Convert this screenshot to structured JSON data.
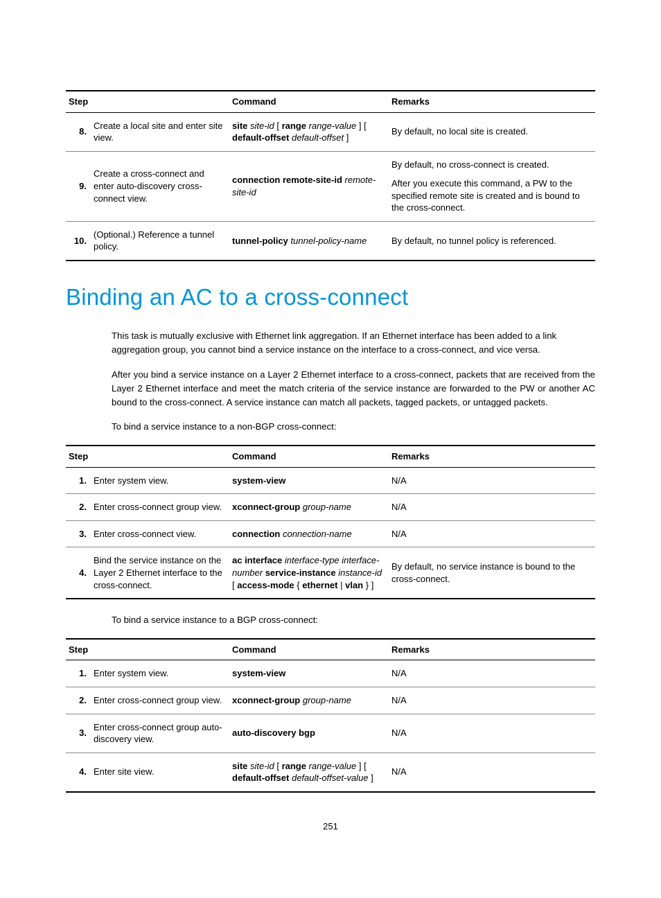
{
  "colors": {
    "heading": "#0096d6",
    "accent_red": "#c8102e",
    "text": "#000000",
    "border_dark": "#000000",
    "border_light": "#888888",
    "background": "#ffffff"
  },
  "table1": {
    "headers": {
      "step": "Step",
      "command": "Command",
      "remarks": "Remarks"
    },
    "rows": [
      {
        "num": "8.",
        "desc": "Create a local site and enter site view.",
        "cmd_parts": [
          "<b>site</b> <i>site-id</i> [ <b>range</b> <i>range-value</i> ] [ <b>default-offset</b> <i>default-offset</i> ]"
        ],
        "rem_parts": [
          "By default, no local site is created."
        ]
      },
      {
        "num": "9.",
        "desc": "Create a cross-connect and enter auto-discovery cross-connect view.",
        "cmd_parts": [
          "<b>connection remote-site-id</b> <i>remote-site-id</i>"
        ],
        "rem_parts": [
          "By default, no cross-connect is created.",
          "After you execute this command, a PW to the specified remote site is created and is bound to the cross-connect."
        ]
      },
      {
        "num": "10.",
        "desc": "(Optional.) Reference a tunnel policy.",
        "cmd_parts": [
          "<b>tunnel-policy</b> <i>tunnel-policy-name</i>"
        ],
        "rem_parts": [
          "By default, no tunnel policy is referenced."
        ]
      }
    ]
  },
  "heading": "Binding an AC to a cross-connect",
  "para1": "This task is mutually exclusive with Ethernet link aggregation. If an Ethernet interface has been added to a link aggregation group, you cannot bind a service instance on the interface to a cross-connect, and vice versa.",
  "para2": "After you bind a service instance on a Layer 2 Ethernet interface to a cross-connect, packets that are received from the Layer 2 Ethernet interface and meet the match criteria of the service instance are forwarded to the PW or another AC bound to the cross-connect. A service instance can match all packets, tagged packets, or untagged packets.",
  "para3": "To bind a service instance to a non-BGP cross-connect:",
  "table2": {
    "headers": {
      "step": "Step",
      "command": "Command",
      "remarks": "Remarks"
    },
    "rows": [
      {
        "num": "1.",
        "red": true,
        "desc": "Enter system view.",
        "cmd_parts": [
          "<b>system-view</b>"
        ],
        "rem_parts": [
          "N/A"
        ]
      },
      {
        "num": "2.",
        "red": true,
        "desc": "Enter cross-connect group view.",
        "cmd_parts": [
          "<b>xconnect-group</b> <i>group-name</i>"
        ],
        "rem_parts": [
          "N/A"
        ]
      },
      {
        "num": "3.",
        "red": true,
        "desc": "Enter cross-connect view.",
        "cmd_parts": [
          "<b>connection</b> <i>connection-name</i>"
        ],
        "rem_parts": [
          "N/A"
        ]
      },
      {
        "num": "4.",
        "red": false,
        "desc": "Bind the service instance on the Layer 2 Ethernet interface to the cross-connect.",
        "cmd_parts": [
          "<b>ac interface</b> <i>interface-type interface-number</i> <b>service-instance</b> <i>instance-id</i> [ <b>access-mode</b> { <b>ethernet</b> | <b>vlan</b> } ]"
        ],
        "rem_parts": [
          "By default, no service instance is bound to the cross-connect."
        ]
      }
    ]
  },
  "para4": "To bind a service instance to a BGP cross-connect:",
  "table3": {
    "headers": {
      "step": "Step",
      "command": "Command",
      "remarks": "Remarks"
    },
    "rows": [
      {
        "num": "1.",
        "red": true,
        "desc": "Enter system view.",
        "cmd_parts": [
          "<b>system-view</b>"
        ],
        "rem_parts": [
          "N/A"
        ]
      },
      {
        "num": "2.",
        "red": true,
        "desc": "Enter cross-connect group view.",
        "cmd_parts": [
          "<b>xconnect-group</b> <i>group-name</i>"
        ],
        "rem_parts": [
          "N/A"
        ]
      },
      {
        "num": "3.",
        "red": true,
        "desc": "Enter cross-connect group auto-discovery view.",
        "cmd_parts": [
          "<b>auto-discovery bgp</b>"
        ],
        "rem_parts": [
          "N/A"
        ]
      },
      {
        "num": "4.",
        "red": false,
        "desc": "Enter site view.",
        "cmd_parts": [
          "<b>site</b> <i>site-id</i> [ <b>range</b> <i>range-value</i> ] [ <b>default-offset</b> <i>default-offset-value</i> ]"
        ],
        "rem_parts": [
          "N/A"
        ]
      }
    ]
  },
  "page_number": "251"
}
